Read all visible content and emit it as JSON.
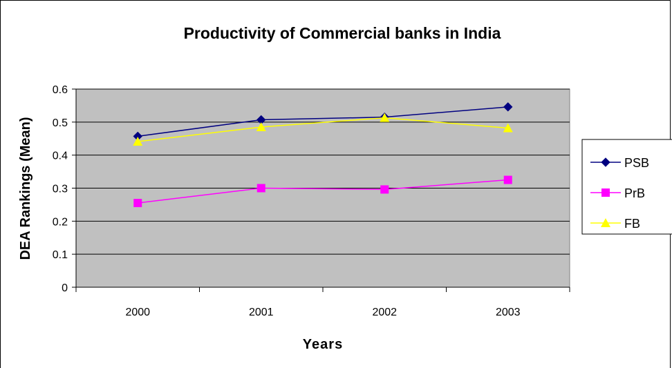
{
  "chart_data": {
    "type": "line",
    "title": "Productivity of Commercial banks in India",
    "xlabel": "Years",
    "ylabel": "DEA Rankings (Mean)",
    "categories": [
      "2000",
      "2001",
      "2002",
      "2003"
    ],
    "ylim": [
      0,
      0.6
    ],
    "yticks": [
      "0",
      "0.1",
      "0.2",
      "0.3",
      "0.4",
      "0.5",
      "0.6"
    ],
    "grid": "horizontal",
    "plot_background": "#c0c0c0",
    "legend_position": "right",
    "series": [
      {
        "name": "PSB",
        "values": [
          0.457,
          0.507,
          0.515,
          0.546
        ],
        "color": "#000080",
        "marker": "diamond"
      },
      {
        "name": "PrB",
        "values": [
          0.255,
          0.3,
          0.296,
          0.325
        ],
        "color": "#ff00ff",
        "marker": "square"
      },
      {
        "name": "FB",
        "values": [
          0.441,
          0.485,
          0.513,
          0.482
        ],
        "color": "#ffff00",
        "marker": "triangle"
      }
    ]
  }
}
